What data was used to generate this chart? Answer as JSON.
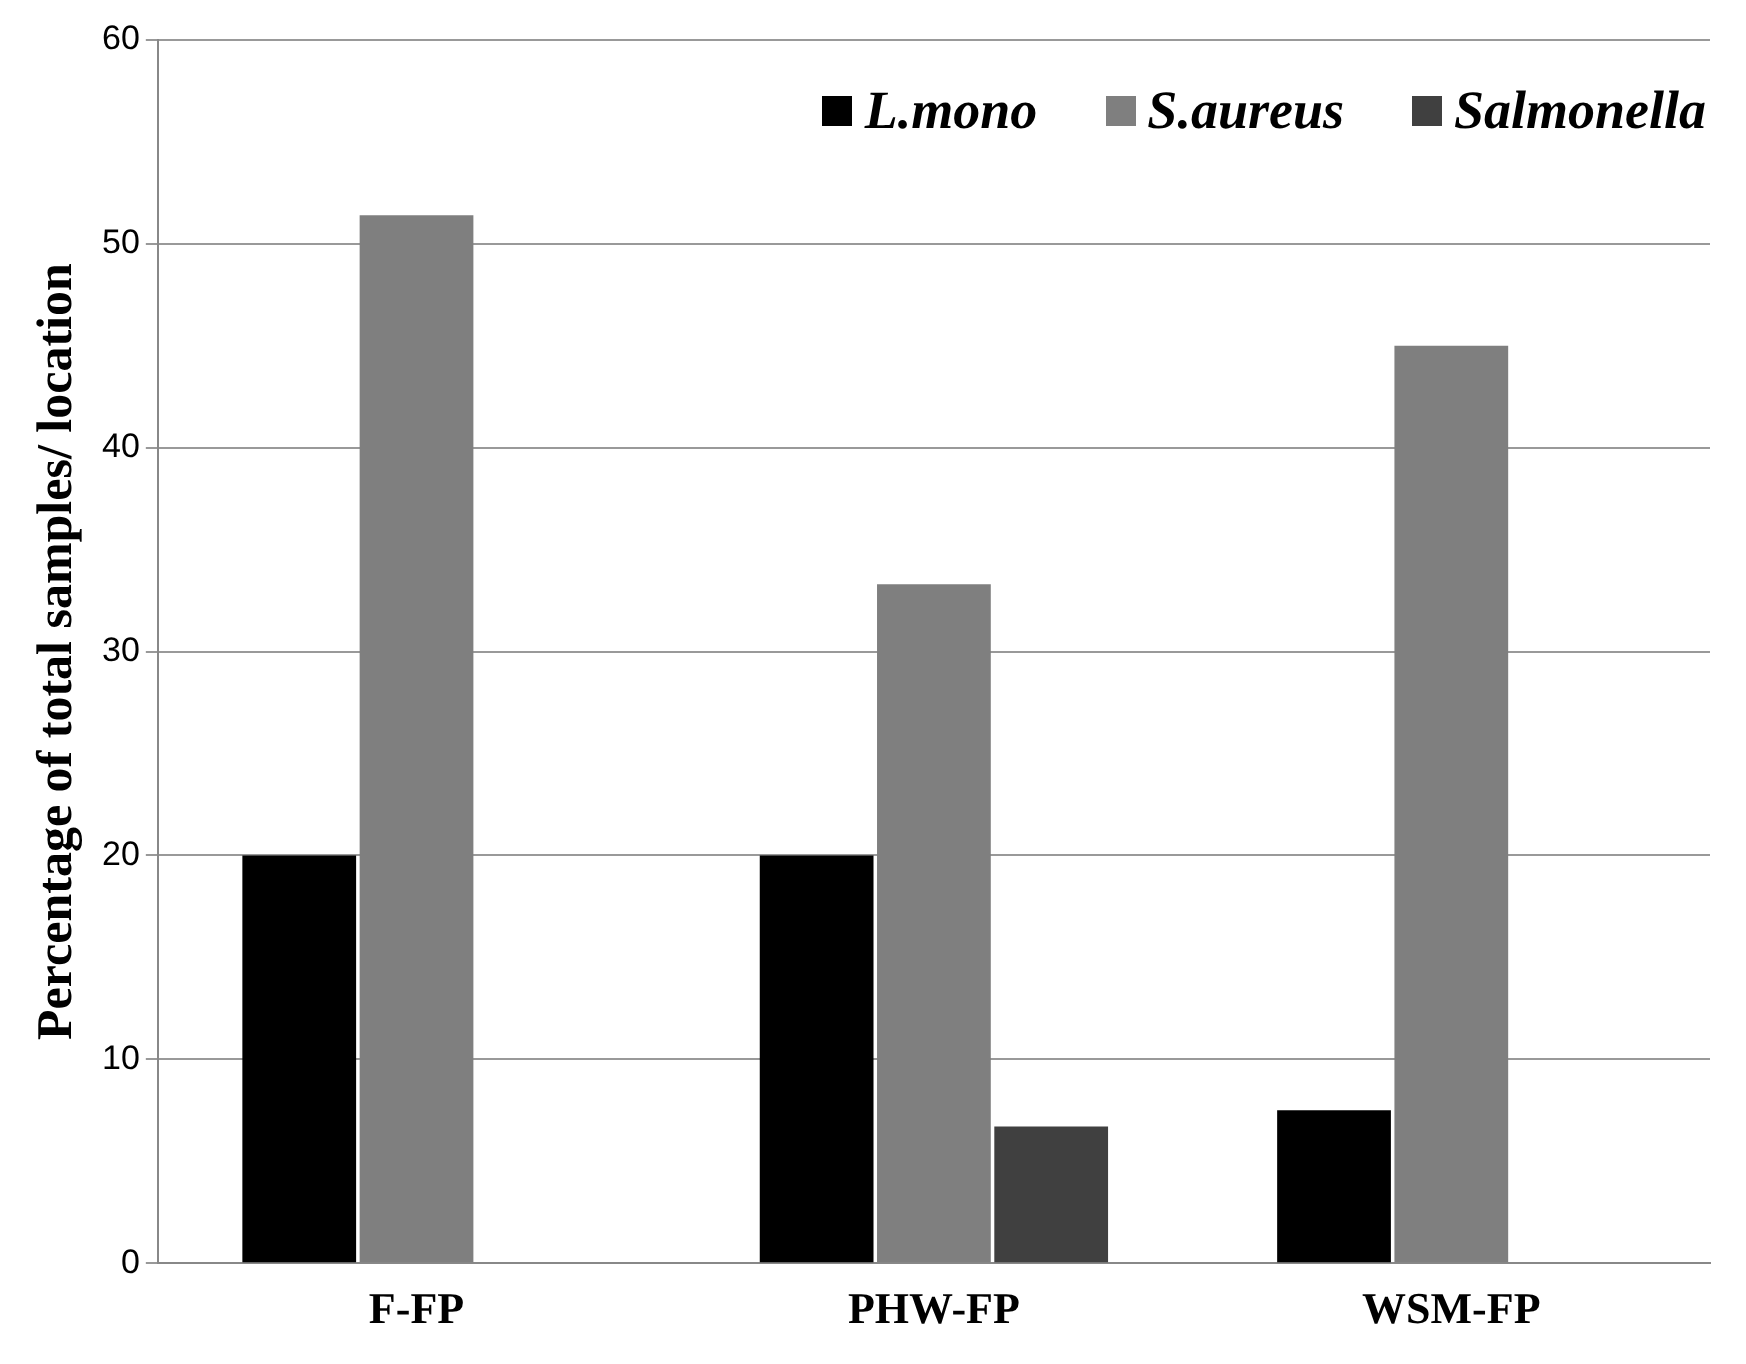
{
  "chart_data": {
    "type": "bar",
    "ylabel": "Percentage of total samples/ location",
    "categories": [
      "F-FP",
      "PHW-FP",
      "WSM-FP"
    ],
    "series": [
      {
        "name": "L.mono",
        "color": "#000000",
        "values": [
          20,
          20,
          7.5
        ]
      },
      {
        "name": "S.aureus",
        "color": "#7f7f7f",
        "values": [
          51.4,
          33.3,
          45
        ]
      },
      {
        "name": "Salmonella",
        "color": "#404040",
        "values": [
          null,
          6.7,
          null
        ]
      }
    ],
    "ylim": [
      0,
      60
    ],
    "yticks": [
      0,
      10,
      20,
      30,
      40,
      50,
      60
    ],
    "grid": "y",
    "legend": "top right"
  }
}
